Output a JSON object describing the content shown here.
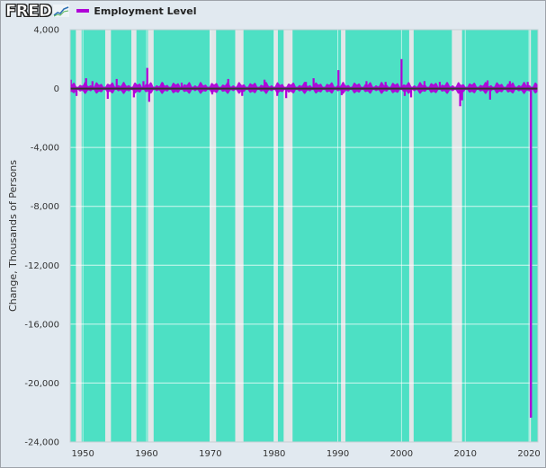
{
  "header": {
    "logo_text": "FRED",
    "legend_label": "Employment Level"
  },
  "chart_data": {
    "type": "bar",
    "title": "",
    "ylabel": "Change, Thousands of Persons",
    "xlabel": "",
    "ylim": [
      -24000,
      4000
    ],
    "xlim": [
      1948.0,
      2021.4
    ],
    "yticks": [
      4000,
      0,
      -4000,
      -8000,
      -12000,
      -16000,
      -20000,
      -24000
    ],
    "ytick_labels": [
      "4,000",
      "0",
      "-4,000",
      "-8,000",
      "-12,000",
      "-16,000",
      "-20,000",
      "-24,000"
    ],
    "xticks": [
      1950,
      1960,
      1970,
      1980,
      1990,
      2000,
      2010,
      2020
    ],
    "xtick_labels": [
      "1950",
      "1960",
      "1970",
      "1980",
      "1990",
      "2000",
      "2010",
      "2020"
    ],
    "grid": true,
    "series": [
      {
        "name": "Employment Level",
        "color": "#b000d8",
        "frequency": "monthly",
        "points": [
          {
            "x": 1948.1,
            "y": 600
          },
          {
            "x": 1949.0,
            "y": -500
          },
          {
            "x": 1950.5,
            "y": 700
          },
          {
            "x": 1951.5,
            "y": 500
          },
          {
            "x": 1953.9,
            "y": -700
          },
          {
            "x": 1955.3,
            "y": 650
          },
          {
            "x": 1958.0,
            "y": -600
          },
          {
            "x": 1959.5,
            "y": 500
          },
          {
            "x": 1960.1,
            "y": 1400
          },
          {
            "x": 1960.4,
            "y": -900
          },
          {
            "x": 1962.5,
            "y": 400
          },
          {
            "x": 1965.5,
            "y": 400
          },
          {
            "x": 1970.3,
            "y": -400
          },
          {
            "x": 1972.8,
            "y": 650
          },
          {
            "x": 1975.0,
            "y": -500
          },
          {
            "x": 1978.5,
            "y": 600
          },
          {
            "x": 1980.5,
            "y": -500
          },
          {
            "x": 1981.9,
            "y": -650
          },
          {
            "x": 1985.0,
            "y": 450
          },
          {
            "x": 1986.2,
            "y": 700
          },
          {
            "x": 1990.1,
            "y": 1250
          },
          {
            "x": 1990.6,
            "y": -450
          },
          {
            "x": 1994.5,
            "y": 500
          },
          {
            "x": 1997.5,
            "y": 450
          },
          {
            "x": 2000.0,
            "y": 2000
          },
          {
            "x": 2000.5,
            "y": -500
          },
          {
            "x": 2001.5,
            "y": -600
          },
          {
            "x": 2003.6,
            "y": 500
          },
          {
            "x": 2006.0,
            "y": 450
          },
          {
            "x": 2009.2,
            "y": -1200
          },
          {
            "x": 2009.5,
            "y": -800
          },
          {
            "x": 2013.5,
            "y": 550
          },
          {
            "x": 2013.9,
            "y": -750
          },
          {
            "x": 2017.0,
            "y": 500
          },
          {
            "x": 2019.8,
            "y": 450
          },
          {
            "x": 2020.3,
            "y": -22350
          }
        ]
      }
    ],
    "bar_color": "#b000d8",
    "zero_line_color": "#333333",
    "shaded_periods": [
      {
        "start": 1948.0,
        "end": 1948.9
      },
      {
        "start": 1949.8,
        "end": 1953.5
      },
      {
        "start": 1954.4,
        "end": 1957.6
      },
      {
        "start": 1958.4,
        "end": 1960.2
      },
      {
        "start": 1961.1,
        "end": 1969.9
      },
      {
        "start": 1970.9,
        "end": 1973.9
      },
      {
        "start": 1975.2,
        "end": 1980.0
      },
      {
        "start": 1980.6,
        "end": 1981.5
      },
      {
        "start": 1982.9,
        "end": 1990.5
      },
      {
        "start": 1991.2,
        "end": 2001.2
      },
      {
        "start": 2001.9,
        "end": 2007.9
      },
      {
        "start": 2009.5,
        "end": 2020.1
      },
      {
        "start": 2020.3,
        "end": 2021.4
      }
    ],
    "shaded_color": "#4de0c4"
  }
}
